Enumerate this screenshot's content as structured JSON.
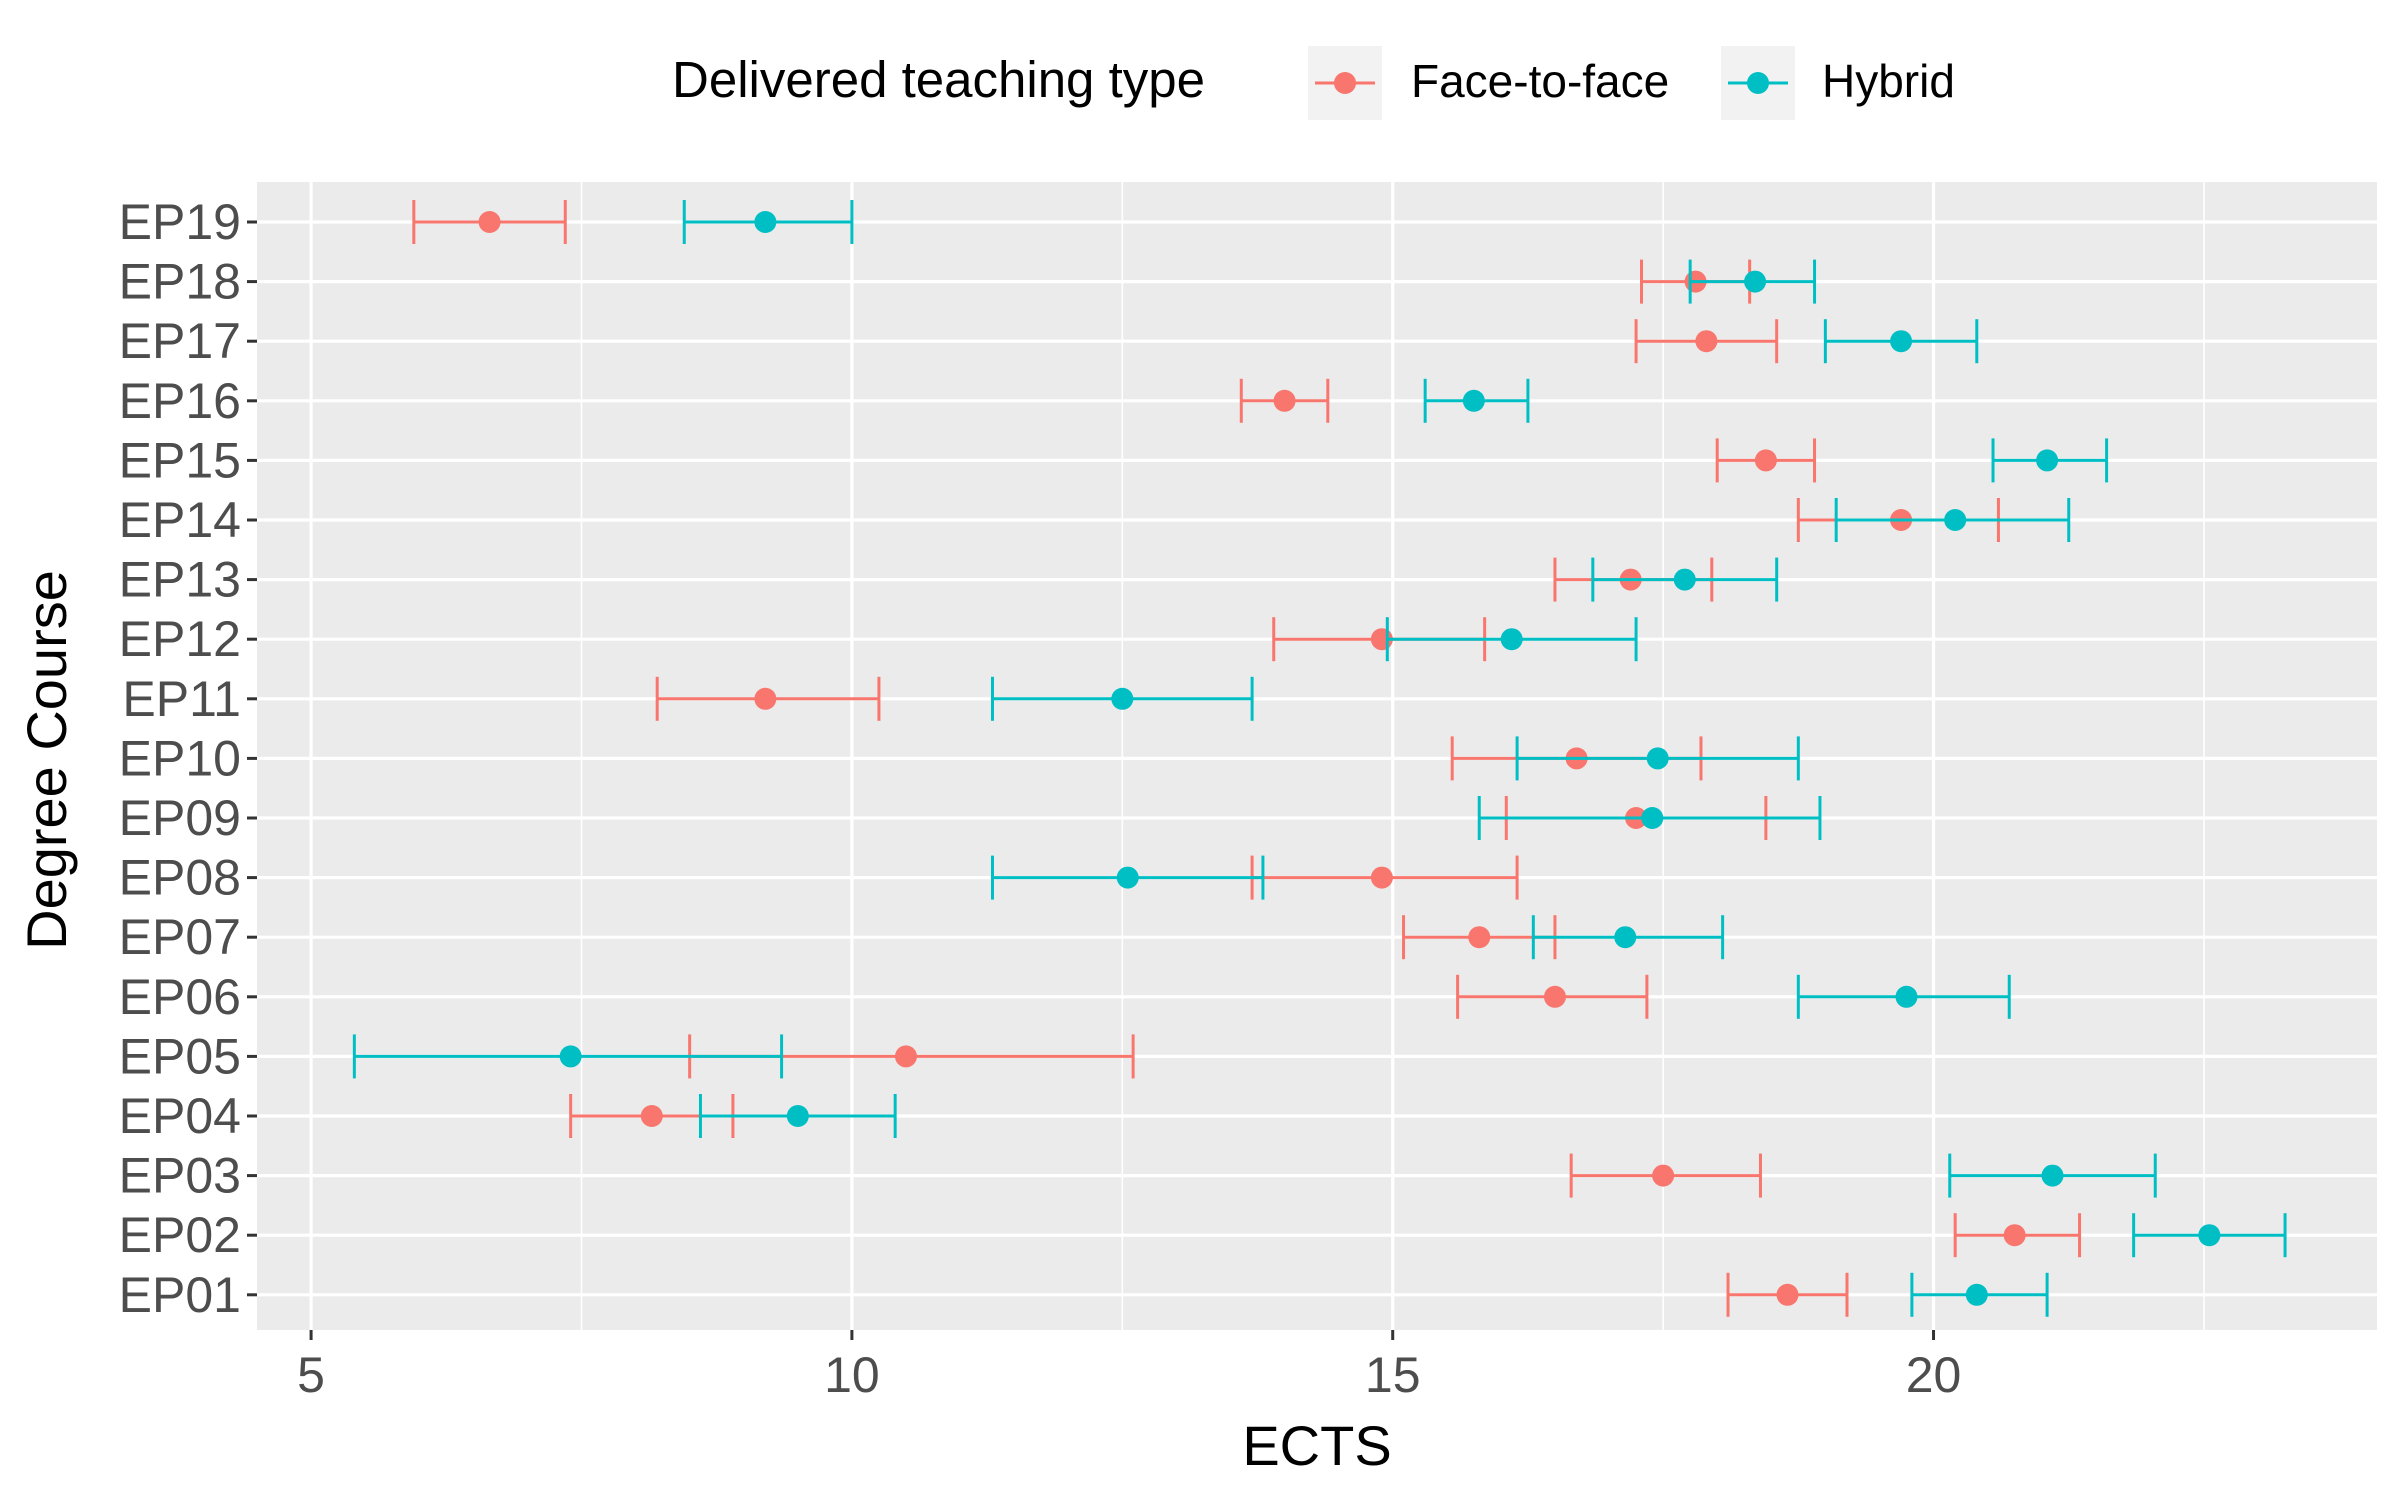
{
  "chart_data": {
    "type": "errorbar",
    "title": "",
    "xlabel": "ECTS",
    "ylabel": "Degree Course",
    "xlim": [
      4.5,
      24.1
    ],
    "xticks": [
      5,
      10,
      15,
      20
    ],
    "xtick_labels": [
      "5",
      "10",
      "15",
      "20"
    ],
    "grid": true,
    "legend": {
      "title": "Delivered teaching type",
      "position": "top"
    },
    "categories": [
      "EP01",
      "EP02",
      "EP03",
      "EP04",
      "EP05",
      "EP06",
      "EP07",
      "EP08",
      "EP09",
      "EP10",
      "EP11",
      "EP12",
      "EP13",
      "EP14",
      "EP15",
      "EP16",
      "EP17",
      "EP18",
      "EP19"
    ],
    "series": [
      {
        "name": "Face-to-face",
        "color": "#F8766D",
        "points": [
          {
            "y": "EP01",
            "x": 18.65,
            "lo": 18.1,
            "hi": 19.2
          },
          {
            "y": "EP02",
            "x": 20.75,
            "lo": 20.2,
            "hi": 21.35
          },
          {
            "y": "EP03",
            "x": 17.5,
            "lo": 16.65,
            "hi": 18.4
          },
          {
            "y": "EP04",
            "x": 8.15,
            "lo": 7.4,
            "hi": 8.9
          },
          {
            "y": "EP05",
            "x": 10.5,
            "lo": 8.5,
            "hi": 12.6
          },
          {
            "y": "EP06",
            "x": 16.5,
            "lo": 15.6,
            "hi": 17.35
          },
          {
            "y": "EP07",
            "x": 15.8,
            "lo": 15.1,
            "hi": 16.5
          },
          {
            "y": "EP08",
            "x": 14.9,
            "lo": 13.7,
            "hi": 16.15
          },
          {
            "y": "EP09",
            "x": 17.25,
            "lo": 16.05,
            "hi": 18.45
          },
          {
            "y": "EP10",
            "x": 16.7,
            "lo": 15.55,
            "hi": 17.85
          },
          {
            "y": "EP11",
            "x": 9.2,
            "lo": 8.2,
            "hi": 10.25
          },
          {
            "y": "EP12",
            "x": 14.9,
            "lo": 13.9,
            "hi": 15.85
          },
          {
            "y": "EP13",
            "x": 17.2,
            "lo": 16.5,
            "hi": 17.95
          },
          {
            "y": "EP14",
            "x": 19.7,
            "lo": 18.75,
            "hi": 20.6
          },
          {
            "y": "EP15",
            "x": 18.45,
            "lo": 18.0,
            "hi": 18.9
          },
          {
            "y": "EP16",
            "x": 14.0,
            "lo": 13.6,
            "hi": 14.4
          },
          {
            "y": "EP17",
            "x": 17.9,
            "lo": 17.25,
            "hi": 18.55
          },
          {
            "y": "EP18",
            "x": 17.8,
            "lo": 17.3,
            "hi": 18.3
          },
          {
            "y": "EP19",
            "x": 6.65,
            "lo": 5.95,
            "hi": 7.35
          }
        ]
      },
      {
        "name": "Hybrid",
        "color": "#00BFC4",
        "points": [
          {
            "y": "EP01",
            "x": 20.4,
            "lo": 19.8,
            "hi": 21.05
          },
          {
            "y": "EP02",
            "x": 22.55,
            "lo": 21.85,
            "hi": 23.25
          },
          {
            "y": "EP03",
            "x": 21.1,
            "lo": 20.15,
            "hi": 22.05
          },
          {
            "y": "EP04",
            "x": 9.5,
            "lo": 8.6,
            "hi": 10.4
          },
          {
            "y": "EP05",
            "x": 7.4,
            "lo": 5.4,
            "hi": 9.35
          },
          {
            "y": "EP06",
            "x": 19.75,
            "lo": 18.75,
            "hi": 20.7
          },
          {
            "y": "EP07",
            "x": 17.15,
            "lo": 16.3,
            "hi": 18.05
          },
          {
            "y": "EP08",
            "x": 12.55,
            "lo": 11.3,
            "hi": 13.8
          },
          {
            "y": "EP09",
            "x": 17.4,
            "lo": 15.8,
            "hi": 18.95
          },
          {
            "y": "EP10",
            "x": 17.45,
            "lo": 16.15,
            "hi": 18.75
          },
          {
            "y": "EP11",
            "x": 12.5,
            "lo": 11.3,
            "hi": 13.7
          },
          {
            "y": "EP12",
            "x": 16.1,
            "lo": 14.95,
            "hi": 17.25
          },
          {
            "y": "EP13",
            "x": 17.7,
            "lo": 16.85,
            "hi": 18.55
          },
          {
            "y": "EP14",
            "x": 20.2,
            "lo": 19.1,
            "hi": 21.25
          },
          {
            "y": "EP15",
            "x": 21.05,
            "lo": 20.55,
            "hi": 21.6
          },
          {
            "y": "EP16",
            "x": 15.75,
            "lo": 15.3,
            "hi": 16.25
          },
          {
            "y": "EP17",
            "x": 19.7,
            "lo": 19.0,
            "hi": 20.4
          },
          {
            "y": "EP18",
            "x": 18.35,
            "lo": 17.75,
            "hi": 18.9
          },
          {
            "y": "EP19",
            "x": 9.2,
            "lo": 8.45,
            "hi": 10.0
          }
        ]
      }
    ]
  }
}
